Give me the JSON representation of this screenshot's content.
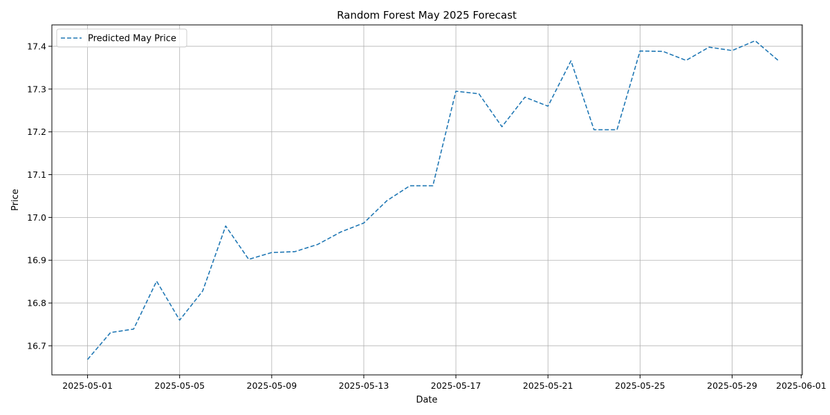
{
  "chart_data": {
    "type": "line",
    "title": "Random Forest May 2025 Forecast",
    "xlabel": "Date",
    "ylabel": "Price",
    "x_ticks": [
      "2025-05-01",
      "2025-05-05",
      "2025-05-09",
      "2025-05-13",
      "2025-05-17",
      "2025-05-21",
      "2025-05-25",
      "2025-05-29",
      "2025-06-01"
    ],
    "y_ticks": [
      16.7,
      16.8,
      16.9,
      17.0,
      17.1,
      17.2,
      17.3,
      17.4
    ],
    "xlim": [
      "2025-04-29.45",
      "2025-06-01.05"
    ],
    "ylim": [
      16.632,
      17.45
    ],
    "grid": true,
    "legend_position": "upper-left",
    "series": [
      {
        "name": "Predicted May Price",
        "color": "#1f77b4",
        "line_style": "dashed",
        "x": [
          "2025-05-01",
          "2025-05-02",
          "2025-05-03",
          "2025-05-04",
          "2025-05-05",
          "2025-05-06",
          "2025-05-07",
          "2025-05-08",
          "2025-05-09",
          "2025-05-10",
          "2025-05-11",
          "2025-05-12",
          "2025-05-13",
          "2025-05-14",
          "2025-05-15",
          "2025-05-16",
          "2025-05-17",
          "2025-05-18",
          "2025-05-19",
          "2025-05-20",
          "2025-05-21",
          "2025-05-22",
          "2025-05-23",
          "2025-05-24",
          "2025-05-25",
          "2025-05-26",
          "2025-05-27",
          "2025-05-28",
          "2025-05-29",
          "2025-05-30",
          "2025-05-31"
        ],
        "values": [
          16.668,
          16.731,
          16.739,
          16.851,
          16.76,
          16.828,
          16.98,
          16.902,
          16.918,
          16.92,
          16.937,
          16.966,
          16.987,
          17.039,
          17.074,
          17.074,
          17.295,
          17.289,
          17.212,
          17.281,
          17.26,
          17.366,
          17.205,
          17.205,
          17.389,
          17.388,
          17.367,
          17.398,
          17.39,
          17.413,
          17.367
        ]
      }
    ]
  }
}
